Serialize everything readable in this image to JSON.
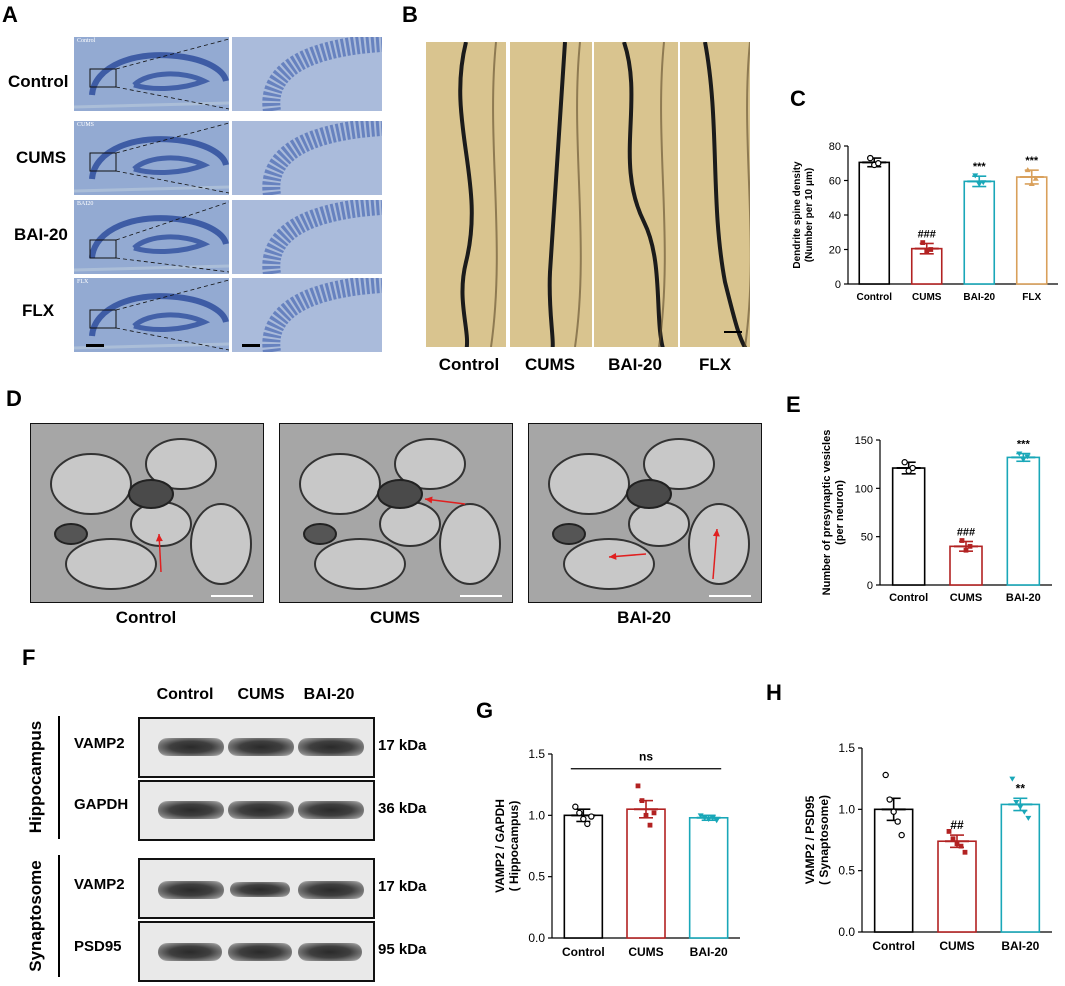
{
  "panels": {
    "A": {
      "letter": "A",
      "rows": [
        "Control",
        "CUMS",
        "BAI-20",
        "FLX"
      ],
      "tiny_labels": [
        "Control",
        "CUMS",
        "BAI20",
        "FLX"
      ]
    },
    "B": {
      "letter": "B",
      "columns": [
        "Control",
        "CUMS",
        "BAI-20",
        "FLX"
      ]
    },
    "D": {
      "letter": "D",
      "columns": [
        "Control",
        "CUMS",
        "BAI-20"
      ]
    },
    "F": {
      "letter": "F",
      "lanes": [
        "Control",
        "CUMS",
        "BAI-20"
      ],
      "groups": [
        "Hippocampus",
        "Synaptosome"
      ],
      "proteins": [
        "VAMP2",
        "GAPDH",
        "VAMP2",
        "PSD95"
      ],
      "sizes": [
        "17 kDa",
        "36 kDa",
        "17 kDa",
        "95 kDa"
      ]
    }
  },
  "colors": {
    "control": "#000000",
    "cums": "#b22222",
    "bai20": "#19a7b8",
    "flx": "#d9a05b"
  },
  "chart_data": [
    {
      "panel": "C",
      "letter": "C",
      "type": "bar",
      "categories": [
        "Control",
        "CUMS",
        "BAI-20",
        "FLX"
      ],
      "values": [
        70.5,
        20.5,
        59.5,
        62
      ],
      "errors": [
        2.5,
        3,
        3,
        4
      ],
      "points": [
        [
          73,
          69,
          70
        ],
        [
          24,
          19,
          20
        ],
        [
          63,
          58,
          59
        ],
        [
          66,
          58,
          61
        ]
      ],
      "annotations": [
        "",
        "###",
        "***",
        "***"
      ],
      "ylabel": "Dendrite spine density",
      "ylabel2": "(Number per 10 μm)",
      "ylim": [
        0,
        80
      ],
      "yticks": [
        "0",
        "20",
        "40",
        "60",
        "80"
      ]
    },
    {
      "panel": "E",
      "letter": "E",
      "type": "bar",
      "categories": [
        "Control",
        "CUMS",
        "BAI-20"
      ],
      "values": [
        121,
        40,
        132
      ],
      "errors": [
        6,
        5,
        4
      ],
      "points": [
        [
          127,
          118,
          121
        ],
        [
          46,
          36,
          40
        ],
        [
          136,
          130,
          133
        ]
      ],
      "annotations": [
        "",
        "###",
        "***"
      ],
      "ylabel": "Number of presynaptic vesicles",
      "ylabel2": "(per neuron)",
      "ylim": [
        0,
        150
      ],
      "yticks": [
        "0",
        "50",
        "100",
        "150"
      ]
    },
    {
      "panel": "G",
      "letter": "G",
      "type": "bar",
      "categories": [
        "Control",
        "CUMS",
        "BAI-20"
      ],
      "values": [
        1.0,
        1.05,
        0.98
      ],
      "errors": [
        0.05,
        0.07,
        0.02
      ],
      "points": [
        [
          1.07,
          1.02,
          0.97,
          0.93,
          0.99
        ],
        [
          1.24,
          1.12,
          1.0,
          0.92,
          1.02
        ],
        [
          1.0,
          0.98,
          0.97,
          0.98,
          0.96
        ]
      ],
      "annotations": [
        "",
        "",
        ""
      ],
      "bracket": "ns",
      "ylabel": "VAMP2 / GAPDH",
      "ylabel2": "( Hippocampus)",
      "ylim": [
        0,
        1.5
      ],
      "yticks": [
        "0.0",
        "0.5",
        "1.0",
        "1.5"
      ]
    },
    {
      "panel": "H",
      "letter": "H",
      "type": "bar",
      "categories": [
        "Control",
        "CUMS",
        "BAI-20"
      ],
      "values": [
        1.0,
        0.74,
        1.04
      ],
      "errors": [
        0.09,
        0.05,
        0.05
      ],
      "points": [
        [
          1.28,
          1.08,
          0.98,
          0.9,
          0.79
        ],
        [
          0.82,
          0.76,
          0.72,
          0.7,
          0.65
        ],
        [
          1.25,
          1.06,
          1.02,
          0.98,
          0.93
        ]
      ],
      "annotations": [
        "",
        "##",
        "**"
      ],
      "ylabel": "VAMP2 / PSD95",
      "ylabel2": "( Synaptosome)",
      "ylim": [
        0,
        1.5
      ],
      "yticks": [
        "0.0",
        "0.5",
        "1.0",
        "1.5"
      ]
    }
  ]
}
